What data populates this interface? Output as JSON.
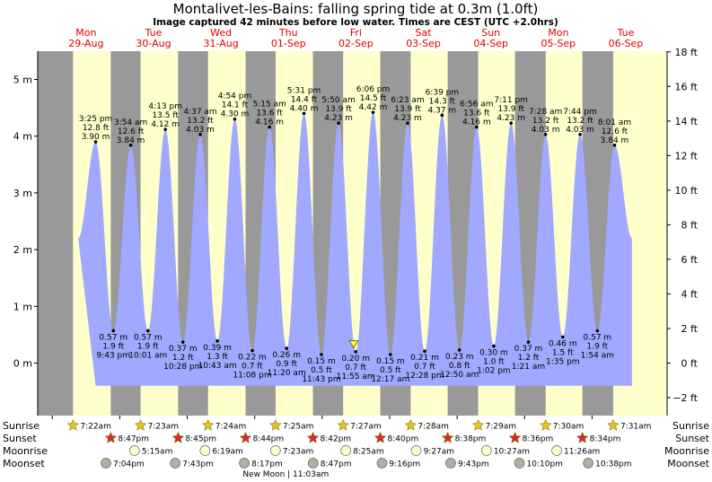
{
  "title": "Montalivet-les-Bains: falling  spring tide at 0.3m (1.0ft)",
  "subtitle": "Image captured 42 minutes before low water. Times are CEST (UTC +2.0hrs)",
  "colors": {
    "night": "#999999",
    "day": "#ffffcc",
    "tide": "#a0a8ff",
    "day_label": "#e00000",
    "sun": "#e8c020",
    "sunset_star": "#d03020",
    "moon": "#ffffcc",
    "moonset": "#b0b0a0"
  },
  "days": [
    {
      "day": "Mon",
      "date": "29-Aug"
    },
    {
      "day": "Tue",
      "date": "30-Aug"
    },
    {
      "day": "Wed",
      "date": "31-Aug"
    },
    {
      "day": "Thu",
      "date": "01-Sep"
    },
    {
      "day": "Fri",
      "date": "02-Sep"
    },
    {
      "day": "Sat",
      "date": "03-Sep"
    },
    {
      "day": "Sun",
      "date": "04-Sep"
    },
    {
      "day": "Mon",
      "date": "05-Sep"
    },
    {
      "day": "Tue",
      "date": "06-Sep"
    }
  ],
  "chart_data": {
    "type": "area",
    "title": "Montalivet-les-Bains: falling  spring tide at 0.3m (1.0ft)",
    "x_unit": "hours from 00:00 Mon 29-Aug (CEST)",
    "x_range": [
      -5.2,
      218.7
    ],
    "ylim_m": [
      -0.75,
      5.4
    ],
    "ylim_ft": [
      -2.46,
      17.72
    ],
    "y_ticks_m": [
      0,
      1,
      2,
      3,
      4,
      5
    ],
    "y_tick_labels_m": [
      "0 m",
      "1 m",
      "2 m",
      "3 m",
      "4 m",
      "5 m"
    ],
    "y_ticks_ft": [
      -2,
      0,
      2,
      4,
      6,
      8,
      10,
      12,
      14,
      16,
      18
    ],
    "y_tick_labels_ft": [
      "−2 ft",
      "0 ft",
      "2 ft",
      "4 ft",
      "6 ft",
      "8 ft",
      "10 ft",
      "12 ft",
      "14 ft",
      "16 ft",
      "18 ft"
    ],
    "extremes": [
      {
        "type": "high",
        "t": 15.417,
        "time": "3:25 pm",
        "ft": "12.8 ft",
        "m": 3.9,
        "label_m": "3.90 m"
      },
      {
        "type": "low",
        "t": 21.717,
        "time": "9:43 pm",
        "ft": "1.9 ft",
        "m": 0.57,
        "label_m": "0.57 m"
      },
      {
        "type": "high",
        "t": 27.9,
        "time": "3:54 am",
        "ft": "12.6 ft",
        "m": 3.84,
        "label_m": "3.84 m"
      },
      {
        "type": "low",
        "t": 34.017,
        "time": "10:01 am",
        "ft": "1.9 ft",
        "m": 0.57,
        "label_m": "0.57 m"
      },
      {
        "type": "high",
        "t": 40.217,
        "time": "4:13 pm",
        "ft": "13.5 ft",
        "m": 4.12,
        "label_m": "4.12 m"
      },
      {
        "type": "low",
        "t": 46.467,
        "time": "10:28 pm",
        "ft": "1.2 ft",
        "m": 0.37,
        "label_m": "0.37 m"
      },
      {
        "type": "high",
        "t": 52.617,
        "time": "4:37 am",
        "ft": "13.2 ft",
        "m": 4.03,
        "label_m": "4.03 m"
      },
      {
        "type": "low",
        "t": 58.717,
        "time": "10:43 am",
        "ft": "1.3 ft",
        "m": 0.39,
        "label_m": "0.39 m"
      },
      {
        "type": "high",
        "t": 64.9,
        "time": "4:54 pm",
        "ft": "14.1 ft",
        "m": 4.3,
        "label_m": "4.30 m"
      },
      {
        "type": "low",
        "t": 71.133,
        "time": "11:08 pm",
        "ft": "0.7 ft",
        "m": 0.22,
        "label_m": "0.22 m"
      },
      {
        "type": "high",
        "t": 77.25,
        "time": "5:15 am",
        "ft": "13.6 ft",
        "m": 4.16,
        "label_m": "4.16 m"
      },
      {
        "type": "low",
        "t": 83.333,
        "time": "11:20 am",
        "ft": "0.9 ft",
        "m": 0.26,
        "label_m": "0.26 m"
      },
      {
        "type": "high",
        "t": 89.517,
        "time": "5:31 pm",
        "ft": "14.4 ft",
        "m": 4.4,
        "label_m": "4.40 m"
      },
      {
        "type": "low",
        "t": 95.717,
        "time": "11:43 pm",
        "ft": "0.5 ft",
        "m": 0.15,
        "label_m": "0.15 m"
      },
      {
        "type": "high",
        "t": 101.833,
        "time": "5:50 am",
        "ft": "13.9 ft",
        "m": 4.23,
        "label_m": "4.23 m"
      },
      {
        "type": "low",
        "t": 107.917,
        "time": "11:55 am",
        "ft": "0.7 ft",
        "m": 0.2,
        "label_m": "0.20 m"
      },
      {
        "type": "high",
        "t": 114.1,
        "time": "6:06 pm",
        "ft": "14.5 ft",
        "m": 4.42,
        "label_m": "4.42 m"
      },
      {
        "type": "low",
        "t": 120.283,
        "time": "12:17 am",
        "ft": "0.5 ft",
        "m": 0.15,
        "label_m": "0.15 m"
      },
      {
        "type": "high",
        "t": 126.383,
        "time": "6:23 am",
        "ft": "13.9 ft",
        "m": 4.23,
        "label_m": "4.23 m"
      },
      {
        "type": "low",
        "t": 132.467,
        "time": "12:28 pm",
        "ft": "0.7 ft",
        "m": 0.21,
        "label_m": "0.21 m"
      },
      {
        "type": "high",
        "t": 138.65,
        "time": "6:39 pm",
        "ft": "14.3 ft",
        "m": 4.37,
        "label_m": "4.37 m"
      },
      {
        "type": "low",
        "t": 144.833,
        "time": "12:50 am",
        "ft": "0.8 ft",
        "m": 0.23,
        "label_m": "0.23 m"
      },
      {
        "type": "high",
        "t": 150.933,
        "time": "6:56 am",
        "ft": "13.6 ft",
        "m": 4.16,
        "label_m": "4.16 m"
      },
      {
        "type": "low",
        "t": 157.033,
        "time": "1:02 pm",
        "ft": "1.0 ft",
        "m": 0.3,
        "label_m": "0.30 m"
      },
      {
        "type": "high",
        "t": 163.183,
        "time": "7:11 pm",
        "ft": "13.9 ft",
        "m": 4.23,
        "label_m": "4.23 m"
      },
      {
        "type": "low",
        "t": 169.35,
        "time": "1:21 am",
        "ft": "1.2 ft",
        "m": 0.37,
        "label_m": "0.37 m"
      },
      {
        "type": "high",
        "t": 175.467,
        "time": "7:28 am",
        "ft": "13.2 ft",
        "m": 4.03,
        "label_m": "4.03 m"
      },
      {
        "type": "low",
        "t": 181.583,
        "time": "1:35 pm",
        "ft": "1.5 ft",
        "m": 0.46,
        "label_m": "0.46 m"
      },
      {
        "type": "high",
        "t": 187.733,
        "time": "7:44 pm",
        "ft": "13.2 ft",
        "m": 4.03,
        "label_m": "4.03 m"
      },
      {
        "type": "low",
        "t": 193.9,
        "time": "1:54 am",
        "ft": "1.9 ft",
        "m": 0.57,
        "label_m": "0.57 m"
      },
      {
        "type": "high",
        "t": 200.017,
        "time": "8:01 am",
        "ft": "12.6 ft",
        "m": 3.84,
        "label_m": "3.84 m"
      }
    ],
    "current": {
      "t": 107.2,
      "m": 0.3,
      "label": "falling spring tide at 0.3m (1.0ft)"
    }
  },
  "astro": {
    "row_labels": {
      "sunrise": "Sunrise",
      "sunset": "Sunset",
      "moonrise": "Moonrise",
      "moonset": "Moonset"
    },
    "sunrise": [
      {
        "t": 7.367,
        "label": "7:22am"
      },
      {
        "t": 31.383,
        "label": "7:23am"
      },
      {
        "t": 55.4,
        "label": "7:24am"
      },
      {
        "t": 79.417,
        "label": "7:25am"
      },
      {
        "t": 103.45,
        "label": "7:27am"
      },
      {
        "t": 127.467,
        "label": "7:28am"
      },
      {
        "t": 151.483,
        "label": "7:29am"
      },
      {
        "t": 175.5,
        "label": "7:30am"
      },
      {
        "t": 199.517,
        "label": "7:31am"
      }
    ],
    "sunset": [
      {
        "t": 20.783,
        "label": "8:47pm"
      },
      {
        "t": 44.75,
        "label": "8:45pm"
      },
      {
        "t": 68.733,
        "label": "8:44pm"
      },
      {
        "t": 92.7,
        "label": "8:42pm"
      },
      {
        "t": 116.667,
        "label": "8:40pm"
      },
      {
        "t": 140.633,
        "label": "8:38pm"
      },
      {
        "t": 164.6,
        "label": "8:36pm"
      },
      {
        "t": 188.567,
        "label": "8:34pm"
      }
    ],
    "moonrise": [
      {
        "t": 29.25,
        "label": "5:15am"
      },
      {
        "t": 54.317,
        "label": "6:19am"
      },
      {
        "t": 79.383,
        "label": "7:23am"
      },
      {
        "t": 104.417,
        "label": "8:25am"
      },
      {
        "t": 129.45,
        "label": "9:27am"
      },
      {
        "t": 154.45,
        "label": "10:27am"
      },
      {
        "t": 179.433,
        "label": "11:26am"
      }
    ],
    "moonset": [
      {
        "t": 19.067,
        "label": "7:04pm"
      },
      {
        "t": 43.717,
        "label": "7:43pm"
      },
      {
        "t": 68.283,
        "label": "8:17pm"
      },
      {
        "t": 92.783,
        "label": "8:47pm"
      },
      {
        "t": 117.267,
        "label": "9:16pm"
      },
      {
        "t": 141.717,
        "label": "9:43pm"
      },
      {
        "t": 166.167,
        "label": "10:10pm"
      },
      {
        "t": 190.633,
        "label": "10:38pm"
      }
    ],
    "moon_phase": {
      "t": 83.05,
      "label": "New Moon | 11:03am"
    }
  }
}
